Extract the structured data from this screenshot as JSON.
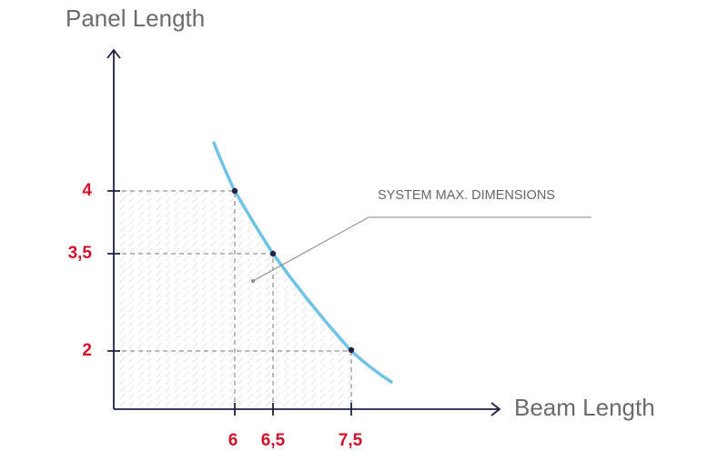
{
  "axes": {
    "y_title": "Panel Length",
    "x_title": "Beam Length"
  },
  "y_labels": [
    "4",
    "3,5",
    "2"
  ],
  "x_labels": [
    "6",
    "6,5",
    "7,5"
  ],
  "annotation": "SYSTEM MAX. DIMENSIONS"
}
